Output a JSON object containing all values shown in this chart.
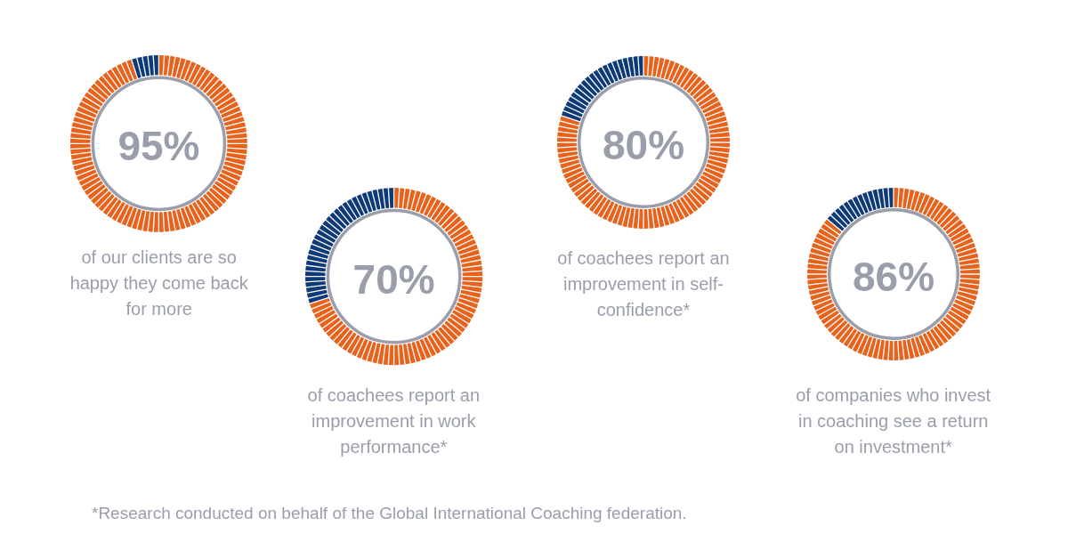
{
  "chart_data": [
    {
      "type": "donut",
      "categories": [
        null,
        null
      ],
      "values": [
        95,
        5
      ],
      "colors": [
        "#e8621c",
        "#0e3a78"
      ],
      "value_labels": [
        "95%",
        null
      ],
      "title": "of our clients are so happy they come back for more"
    },
    {
      "type": "donut",
      "categories": [
        null,
        null
      ],
      "values": [
        70,
        30
      ],
      "colors": [
        "#e8621c",
        "#0e3a78"
      ],
      "value_labels": [
        "70%",
        null
      ],
      "title": "of coachees report an improvement in work performance*"
    },
    {
      "type": "donut",
      "categories": [
        null,
        null
      ],
      "values": [
        80,
        20
      ],
      "colors": [
        "#e8621c",
        "#0e3a78"
      ],
      "value_labels": [
        "80%",
        null
      ],
      "title": "of coachees report an improvement in self-confidence*"
    },
    {
      "type": "donut",
      "categories": [
        null,
        null
      ],
      "values": [
        86,
        14
      ],
      "colors": [
        "#e8621c",
        "#0e3a78"
      ],
      "value_labels": [
        "86%",
        null
      ],
      "title": "of companies who invest in coaching see a return on investment*",
      "annotations": [
        "*Research conducted on behalf of the Global International Coaching federation."
      ]
    }
  ]
}
